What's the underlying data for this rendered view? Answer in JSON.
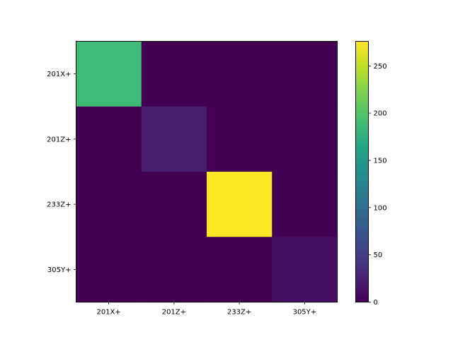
{
  "chart_data": {
    "type": "heatmap",
    "title": "",
    "xlabel": "",
    "ylabel": "",
    "x_categories": [
      "201X+",
      "201Z+",
      "233Z+",
      "305Y+"
    ],
    "y_categories": [
      "201X+",
      "201Z+",
      "233Z+",
      "305Y+"
    ],
    "values": [
      [
        188,
        0,
        0,
        0
      ],
      [
        0,
        22,
        0,
        0
      ],
      [
        0,
        0,
        276,
        0
      ],
      [
        0,
        0,
        0,
        12
      ]
    ],
    "colormap": "viridis",
    "vmin": 0,
    "vmax": 276,
    "colorbar_ticks": [
      0,
      50,
      100,
      150,
      200,
      250
    ],
    "colorbar_tick_labels": [
      "0",
      "50",
      "100",
      "150",
      "200",
      "250"
    ],
    "grid": false
  }
}
